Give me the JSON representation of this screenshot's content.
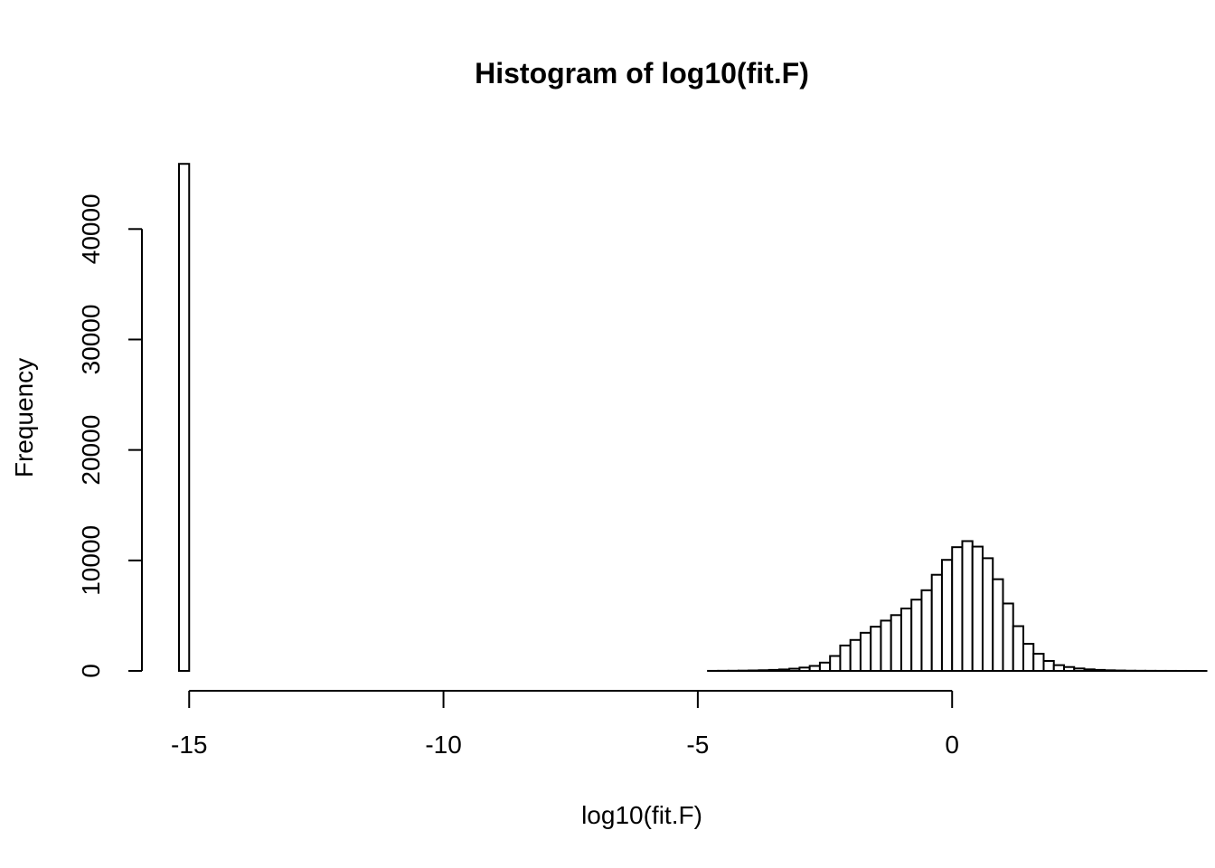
{
  "chart_data": {
    "type": "bar",
    "title": "Histogram of log10(fit.F)",
    "xlabel": "log10(fit.F)",
    "ylabel": "Frequency",
    "xlim": [
      -15.2,
      3.0
    ],
    "ylim": [
      0,
      46000
    ],
    "x_ticks": [
      -15,
      -10,
      -5,
      0
    ],
    "x_tick_labels": [
      "-15",
      "-10",
      "-5",
      "0"
    ],
    "y_ticks": [
      0,
      10000,
      20000,
      30000,
      40000
    ],
    "y_tick_labels": [
      "0",
      "10000",
      "20000",
      "30000",
      "40000"
    ],
    "bin_width": 0.2,
    "bin_start": -15.2,
    "bin_values": [
      45900,
      0,
      0,
      0,
      0,
      0,
      0,
      0,
      0,
      0,
      0,
      0,
      0,
      0,
      0,
      0,
      0,
      0,
      0,
      0,
      0,
      0,
      0,
      0,
      0,
      0,
      0,
      0,
      0,
      0,
      0,
      0,
      0,
      0,
      0,
      0,
      0,
      0,
      0,
      0,
      0,
      0,
      0,
      0,
      0,
      0,
      0,
      0,
      0,
      0,
      0,
      0,
      5,
      10,
      15,
      25,
      40,
      60,
      90,
      130,
      200,
      300,
      450,
      750,
      1350,
      2300,
      2800,
      3450,
      4000,
      4550,
      5050,
      5650,
      6450,
      7300,
      8700,
      10050,
      11200,
      11750,
      11250,
      10200,
      8300,
      6100,
      4050,
      2450,
      1550,
      900,
      520,
      350,
      220,
      140,
      90,
      55,
      35,
      20,
      12,
      8,
      5,
      3,
      2,
      1,
      1
    ]
  }
}
